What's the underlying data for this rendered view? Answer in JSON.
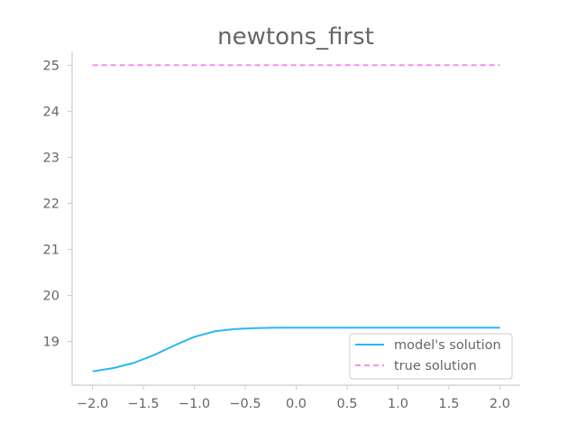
{
  "chart_data": {
    "type": "line",
    "title": "newtons_first",
    "xlabel": "",
    "ylabel": "",
    "xlim": [
      -2.2,
      2.2
    ],
    "ylim": [
      18.05,
      25.3
    ],
    "x_ticks": [
      -2.0,
      -1.5,
      -1.0,
      -0.5,
      0.0,
      0.5,
      1.0,
      1.5,
      2.0
    ],
    "x_tick_labels": [
      "−2.0",
      "−1.5",
      "−1.0",
      "−0.5",
      "0.0",
      "0.5",
      "1.0",
      "1.5",
      "2.0"
    ],
    "y_ticks": [
      19,
      20,
      21,
      22,
      23,
      24,
      25
    ],
    "y_tick_labels": [
      "19",
      "20",
      "21",
      "22",
      "23",
      "24",
      "25"
    ],
    "grid": false,
    "legend_position": "lower-right",
    "series": [
      {
        "name": "model's solution",
        "color": "#29b6f6",
        "style": "solid",
        "x": [
          -2.0,
          -1.8,
          -1.6,
          -1.4,
          -1.2,
          -1.0,
          -0.8,
          -0.6,
          -0.4,
          -0.2,
          0.0,
          0.2,
          0.4,
          0.6,
          0.8,
          1.0,
          1.2,
          1.4,
          1.6,
          1.8,
          2.0
        ],
        "y": [
          18.35,
          18.42,
          18.53,
          18.7,
          18.91,
          19.1,
          19.22,
          19.27,
          19.29,
          19.3,
          19.3,
          19.3,
          19.3,
          19.3,
          19.3,
          19.3,
          19.3,
          19.3,
          19.3,
          19.3,
          19.3
        ]
      },
      {
        "name": "true solution",
        "color": "#f48fef",
        "style": "dashed",
        "x": [
          -2.0,
          2.0
        ],
        "y": [
          25.0,
          25.0
        ]
      }
    ]
  }
}
